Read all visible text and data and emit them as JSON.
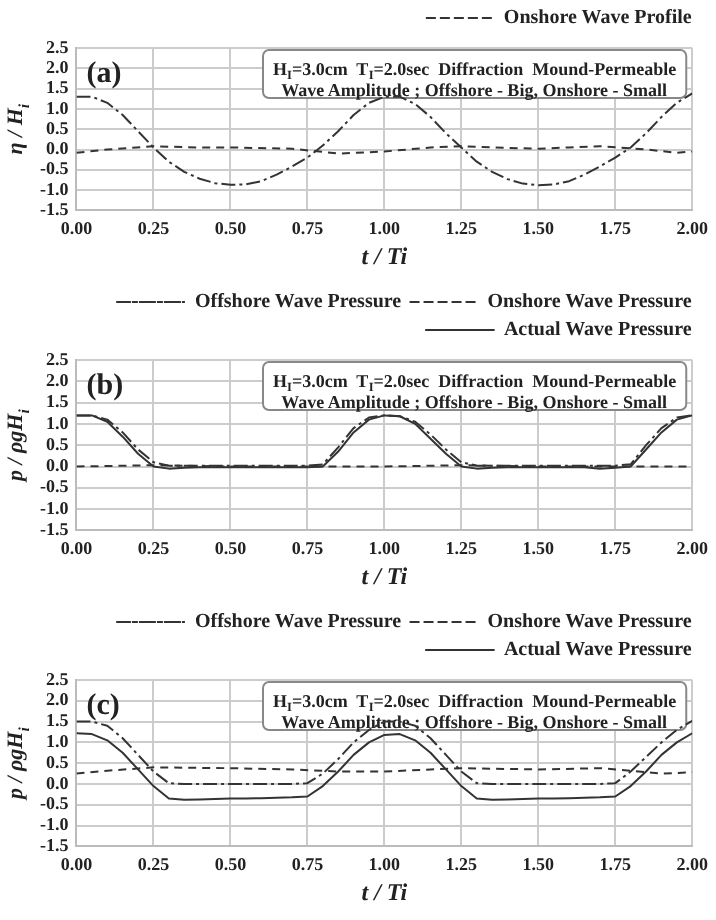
{
  "chart_data": [
    {
      "type": "line",
      "xlabel": "t / Ti",
      "ylabel": "η / H$_{i}$",
      "grid": true,
      "legend": "top right",
      "xlim": [
        0,
        2
      ],
      "xticks": [
        {
          "value": 0,
          "label": "0.00"
        },
        {
          "value": 0.25,
          "label": "0.25"
        },
        {
          "value": 0.5,
          "label": "0.50"
        },
        {
          "value": 0.75,
          "label": "0.75"
        },
        {
          "value": 1,
          "label": "1.00"
        },
        {
          "value": 1.25,
          "label": "1.25"
        },
        {
          "value": 1.5,
          "label": "1.50"
        },
        {
          "value": 1.75,
          "label": "1.75"
        },
        {
          "value": 2,
          "label": "2.00"
        }
      ],
      "ylim": [
        -1.5,
        2.5
      ],
      "yticks": [
        {
          "value": -1.5,
          "label": "-1.5"
        },
        {
          "value": -1,
          "label": "-1.0"
        },
        {
          "value": -0.5,
          "label": "-0.5"
        },
        {
          "value": 0,
          "label": "0.0"
        },
        {
          "value": 0.5,
          "label": "0.5"
        },
        {
          "value": 1,
          "label": "1.0"
        },
        {
          "value": 1.5,
          "label": "1.5"
        },
        {
          "value": 2,
          "label": "2.0"
        },
        {
          "value": 2.5,
          "label": "2.5"
        }
      ],
      "annotations": [
        "(a)",
        "H$_{I}$=3.0cm  T$_{I}$=2.0sec  Diffraction  Mound-Permeable",
        "Wave Amplitude ; Offshore - Big, Onshore - Small"
      ],
      "series": [
        {
          "color": "#333333",
          "line_style": "dashdot",
          "x": [
            0,
            0.05,
            0.1,
            0.15,
            0.2,
            0.25,
            0.3,
            0.35,
            0.4,
            0.45,
            0.5,
            0.55,
            0.6,
            0.65,
            0.7,
            0.75,
            0.8,
            0.85,
            0.9,
            0.95,
            1,
            1.05,
            1.1,
            1.15,
            1.2,
            1.25,
            1.3,
            1.35,
            1.4,
            1.45,
            1.5,
            1.55,
            1.6,
            1.65,
            1.7,
            1.75,
            1.8,
            1.85,
            1.9,
            1.95,
            2
          ],
          "values": [
            1.3,
            1.3,
            1.15,
            0.85,
            0.45,
            0.05,
            -0.3,
            -0.55,
            -0.72,
            -0.83,
            -0.87,
            -0.86,
            -0.78,
            -0.62,
            -0.42,
            -0.2,
            0.1,
            0.45,
            0.85,
            1.15,
            1.3,
            1.3,
            1.12,
            0.8,
            0.4,
            0.05,
            -0.3,
            -0.55,
            -0.73,
            -0.84,
            -0.88,
            -0.86,
            -0.78,
            -0.62,
            -0.42,
            -0.2,
            0.05,
            0.4,
            0.8,
            1.15,
            1.38
          ]
        },
        {
          "name": "Onshore Wave Profile",
          "color": "#333333",
          "line_style": "dashed",
          "x": [
            0,
            0.1,
            0.25,
            0.4,
            0.5,
            0.7,
            0.85,
            1,
            1.15,
            1.25,
            1.4,
            1.5,
            1.6,
            1.7,
            1.85,
            1.95,
            2
          ],
          "values": [
            -0.08,
            0,
            0.08,
            0.05,
            0.05,
            0.02,
            -0.1,
            -0.05,
            0.05,
            0.08,
            0.04,
            0.02,
            0.05,
            0.08,
            0,
            -0.08,
            -0.05
          ]
        }
      ]
    },
    {
      "type": "line",
      "xlabel": "t / Ti",
      "ylabel": "p / ρgH$_{i}$",
      "grid": true,
      "legend": "top right",
      "xlim": [
        0,
        2
      ],
      "xticks": [
        {
          "value": 0,
          "label": "0.00"
        },
        {
          "value": 0.25,
          "label": "0.25"
        },
        {
          "value": 0.5,
          "label": "0.50"
        },
        {
          "value": 0.75,
          "label": "0.75"
        },
        {
          "value": 1,
          "label": "1.00"
        },
        {
          "value": 1.25,
          "label": "1.25"
        },
        {
          "value": 1.5,
          "label": "1.50"
        },
        {
          "value": 1.75,
          "label": "1.75"
        },
        {
          "value": 2,
          "label": "2.00"
        }
      ],
      "ylim": [
        -1.5,
        2.5
      ],
      "yticks": [
        {
          "value": -1.5,
          "label": "-1.5"
        },
        {
          "value": -1,
          "label": "-1.0"
        },
        {
          "value": -0.5,
          "label": "-0.5"
        },
        {
          "value": 0,
          "label": "0.0"
        },
        {
          "value": 0.5,
          "label": "0.5"
        },
        {
          "value": 1,
          "label": "1.0"
        },
        {
          "value": 1.5,
          "label": "1.5"
        },
        {
          "value": 2,
          "label": "2.0"
        },
        {
          "value": 2.5,
          "label": "2.5"
        }
      ],
      "annotations": [
        "(b)",
        "H$_{I}$=3.0cm  T$_{I}$=2.0sec  Diffraction  Mound-Permeable",
        "Wave Amplitude ; Offshore - Big, Onshore - Small"
      ],
      "series": [
        {
          "name": "Offshore Wave Pressure",
          "color": "#333333",
          "line_style": "dashdot",
          "x": [
            0,
            0.05,
            0.1,
            0.15,
            0.2,
            0.25,
            0.3,
            0.35,
            0.4,
            0.45,
            0.5,
            0.55,
            0.6,
            0.65,
            0.7,
            0.75,
            0.8,
            0.85,
            0.9,
            0.95,
            1,
            1.05,
            1.1,
            1.15,
            1.2,
            1.25,
            1.3,
            1.35,
            1.4,
            1.45,
            1.5,
            1.55,
            1.6,
            1.65,
            1.7,
            1.75,
            1.8,
            1.85,
            1.9,
            1.95,
            2
          ],
          "values": [
            1.2,
            1.2,
            1.1,
            0.8,
            0.4,
            0.1,
            0.02,
            0.02,
            0.02,
            0.02,
            0.02,
            0.02,
            0.02,
            0.02,
            0.02,
            0.02,
            0.05,
            0.45,
            0.9,
            1.15,
            1.2,
            1.18,
            1.05,
            0.75,
            0.4,
            0.1,
            0.02,
            0.02,
            0.02,
            0.02,
            0.02,
            0.02,
            0.02,
            0.02,
            0.02,
            0.02,
            0.05,
            0.5,
            0.9,
            1.15,
            1.2
          ]
        },
        {
          "name": "Onshore Wave Pressure",
          "color": "#333333",
          "line_style": "dashed",
          "x": [
            0,
            0.25,
            0.5,
            0.75,
            1,
            1.25,
            1.5,
            1.75,
            2
          ],
          "values": [
            0,
            0.03,
            0,
            0,
            0,
            0.03,
            0,
            0,
            0
          ]
        },
        {
          "name": "Actual Wave Pressure",
          "color": "#333333",
          "line_style": "solid",
          "x": [
            0,
            0.05,
            0.1,
            0.15,
            0.2,
            0.25,
            0.3,
            0.35,
            0.4,
            0.45,
            0.5,
            0.55,
            0.6,
            0.65,
            0.7,
            0.75,
            0.8,
            0.85,
            0.9,
            0.95,
            1,
            1.05,
            1.1,
            1.15,
            1.2,
            1.25,
            1.3,
            1.35,
            1.4,
            1.45,
            1.5,
            1.55,
            1.6,
            1.65,
            1.7,
            1.75,
            1.8,
            1.85,
            1.9,
            1.95,
            2
          ],
          "values": [
            1.2,
            1.2,
            1.05,
            0.7,
            0.3,
            0,
            -0.05,
            -0.03,
            -0.02,
            -0.02,
            -0.02,
            -0.02,
            -0.02,
            -0.02,
            -0.02,
            -0.02,
            0,
            0.35,
            0.8,
            1.1,
            1.2,
            1.18,
            1,
            0.65,
            0.3,
            0,
            -0.05,
            -0.03,
            -0.02,
            -0.02,
            -0.02,
            -0.02,
            -0.02,
            -0.02,
            -0.05,
            -0.03,
            0,
            0.4,
            0.8,
            1.1,
            1.2
          ]
        }
      ]
    },
    {
      "type": "line",
      "xlabel": "t / Ti",
      "ylabel": "p / ρgH$_{i}$",
      "grid": true,
      "legend": "top right",
      "xlim": [
        0,
        2
      ],
      "xticks": [
        {
          "value": 0,
          "label": "0.00"
        },
        {
          "value": 0.25,
          "label": "0.25"
        },
        {
          "value": 0.5,
          "label": "0.50"
        },
        {
          "value": 0.75,
          "label": "0.75"
        },
        {
          "value": 1,
          "label": "1.00"
        },
        {
          "value": 1.25,
          "label": "1.25"
        },
        {
          "value": 1.5,
          "label": "1.50"
        },
        {
          "value": 1.75,
          "label": "1.75"
        },
        {
          "value": 2,
          "label": "2.00"
        }
      ],
      "ylim": [
        -1.5,
        2.5
      ],
      "yticks": [
        {
          "value": -1.5,
          "label": "-1.5"
        },
        {
          "value": -1,
          "label": "-1.0"
        },
        {
          "value": -0.5,
          "label": "-0.5"
        },
        {
          "value": 0,
          "label": "0.0"
        },
        {
          "value": 0.5,
          "label": "0.5"
        },
        {
          "value": 1,
          "label": "1.0"
        },
        {
          "value": 1.5,
          "label": "1.5"
        },
        {
          "value": 2,
          "label": "2.0"
        },
        {
          "value": 2.5,
          "label": "2.5"
        }
      ],
      "annotations": [
        "(c)",
        "H$_{I}$=3.0cm  T$_{I}$=2.0sec  Diffraction  Mound-Permeable",
        "Wave Amplitude ; Offshore - Big, Onshore - Small"
      ],
      "series": [
        {
          "name": "Offshore Wave Pressure",
          "color": "#333333",
          "line_style": "dashdot",
          "x": [
            0,
            0.05,
            0.1,
            0.15,
            0.2,
            0.25,
            0.3,
            0.35,
            0.4,
            0.45,
            0.5,
            0.55,
            0.6,
            0.65,
            0.7,
            0.75,
            0.8,
            0.85,
            0.9,
            0.95,
            1,
            1.05,
            1.1,
            1.15,
            1.2,
            1.25,
            1.3,
            1.35,
            1.4,
            1.45,
            1.5,
            1.55,
            1.6,
            1.65,
            1.7,
            1.75,
            1.8,
            1.85,
            1.9,
            1.95,
            2
          ],
          "values": [
            1.5,
            1.5,
            1.4,
            1.1,
            0.7,
            0.3,
            0.02,
            0,
            0,
            0,
            0,
            0,
            0,
            0,
            0,
            0.02,
            0.25,
            0.6,
            1,
            1.3,
            1.5,
            1.5,
            1.4,
            1.1,
            0.7,
            0.3,
            0.02,
            0,
            0,
            0,
            0,
            0,
            0,
            0,
            0,
            0.02,
            0.3,
            0.65,
            1,
            1.3,
            1.52
          ]
        },
        {
          "name": "Onshore Wave Pressure",
          "color": "#333333",
          "line_style": "dashed",
          "x": [
            0,
            0.1,
            0.25,
            0.5,
            0.7,
            0.85,
            1,
            1.15,
            1.25,
            1.5,
            1.7,
            1.8,
            1.9,
            2
          ],
          "values": [
            0.25,
            0.32,
            0.4,
            0.38,
            0.35,
            0.3,
            0.3,
            0.35,
            0.38,
            0.35,
            0.38,
            0.32,
            0.25,
            0.28
          ]
        },
        {
          "name": "Actual Wave Pressure",
          "color": "#333333",
          "line_style": "solid",
          "x": [
            0,
            0.05,
            0.1,
            0.15,
            0.2,
            0.25,
            0.3,
            0.35,
            0.4,
            0.45,
            0.5,
            0.55,
            0.6,
            0.65,
            0.7,
            0.75,
            0.8,
            0.85,
            0.9,
            0.95,
            1,
            1.05,
            1.1,
            1.15,
            1.2,
            1.25,
            1.3,
            1.35,
            1.4,
            1.45,
            1.5,
            1.55,
            1.6,
            1.65,
            1.7,
            1.75,
            1.8,
            1.85,
            1.9,
            1.95,
            2
          ],
          "values": [
            1.22,
            1.2,
            1.05,
            0.75,
            0.35,
            -0.05,
            -0.35,
            -0.38,
            -0.37,
            -0.36,
            -0.35,
            -0.35,
            -0.34,
            -0.33,
            -0.32,
            -0.3,
            -0.05,
            0.3,
            0.7,
            1,
            1.18,
            1.2,
            1.05,
            0.75,
            0.35,
            -0.05,
            -0.35,
            -0.38,
            -0.37,
            -0.36,
            -0.35,
            -0.35,
            -0.34,
            -0.33,
            -0.32,
            -0.3,
            -0.05,
            0.3,
            0.7,
            1,
            1.22
          ]
        }
      ]
    }
  ]
}
